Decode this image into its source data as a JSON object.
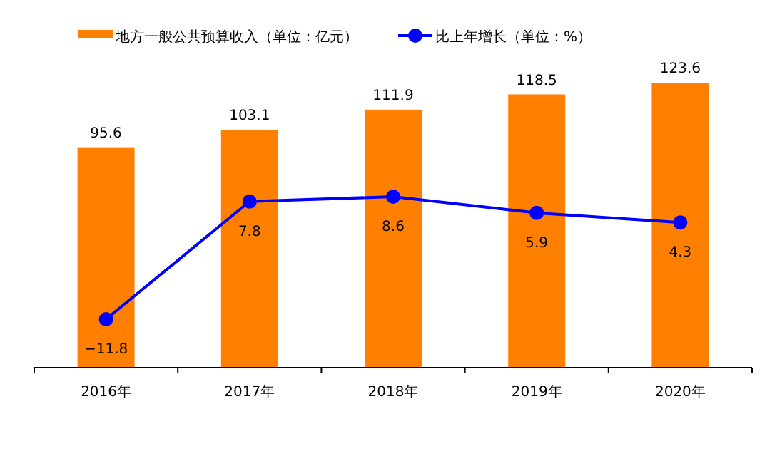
{
  "chart_data": {
    "type": "bar",
    "categories": [
      "2016年",
      "2017年",
      "2018年",
      "2019年",
      "2020年"
    ],
    "series": [
      {
        "name": "地方一般公共预算收入（单位：亿元）",
        "color": "#ff7f00",
        "values": [
          95.6,
          103.1,
          111.9,
          118.5,
          123.6
        ]
      },
      {
        "name": "比上年增长（单位：%）",
        "type": "line",
        "axis": "y2",
        "marker": "circle",
        "color": "#0000ff",
        "values": [
          -11.8,
          7.8,
          8.6,
          5.9,
          4.3
        ]
      }
    ],
    "data_labels": true,
    "legend": "top"
  }
}
